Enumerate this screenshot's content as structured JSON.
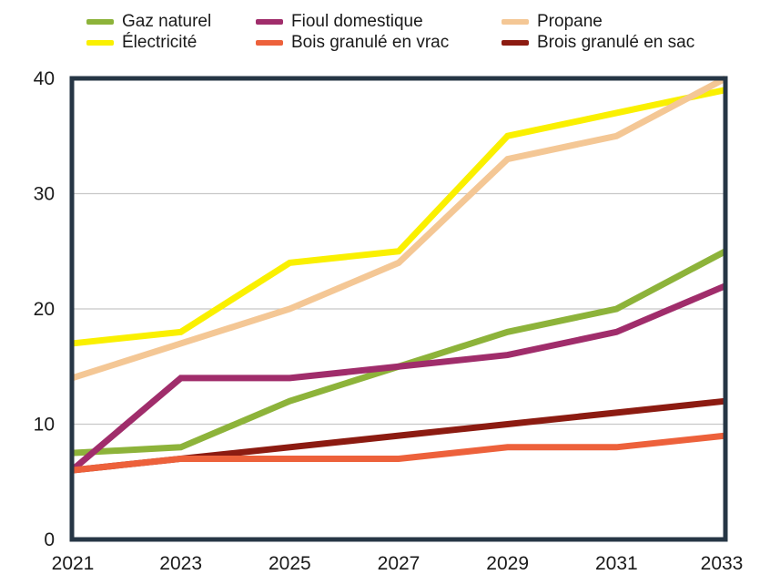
{
  "chart_data": {
    "type": "line",
    "title": "",
    "xlabel": "",
    "ylabel": "",
    "x": [
      2021,
      2023,
      2025,
      2027,
      2029,
      2031,
      2033
    ],
    "x_tick_labels": [
      "2021",
      "2023",
      "2025",
      "2027",
      "2029",
      "2031",
      "2033"
    ],
    "ylim": [
      0,
      40
    ],
    "yticks": [
      0,
      10,
      20,
      30,
      40
    ],
    "grid": true,
    "legend_position": "top",
    "series": [
      {
        "name": "Gaz naturel",
        "color": "#8DB33A",
        "values": [
          7.5,
          8,
          12,
          15,
          18,
          20,
          25
        ]
      },
      {
        "name": "Fioul domestique",
        "color": "#A02D6B",
        "values": [
          6,
          14,
          14,
          15,
          16,
          18,
          22
        ]
      },
      {
        "name": "Propane",
        "color": "#F4C795",
        "values": [
          14,
          17,
          20,
          24,
          33,
          35,
          40
        ]
      },
      {
        "name": "Électricité",
        "color": "#FAF000",
        "values": [
          17,
          18,
          24,
          25,
          35,
          37,
          39
        ]
      },
      {
        "name": "Bois granulé en vrac",
        "color": "#ED613B",
        "values": [
          6,
          7,
          7,
          7,
          8,
          8,
          9
        ]
      },
      {
        "name": "Brois granulé en sac",
        "color": "#8C1B11",
        "values": [
          6,
          7,
          8,
          9,
          10,
          11,
          12
        ]
      }
    ],
    "z_order": [
      5,
      0,
      1,
      3,
      2,
      4
    ],
    "colors": {
      "frame": "#263645",
      "gridline": "#C8C8C8",
      "tick_text": "#1a1a1a"
    }
  }
}
